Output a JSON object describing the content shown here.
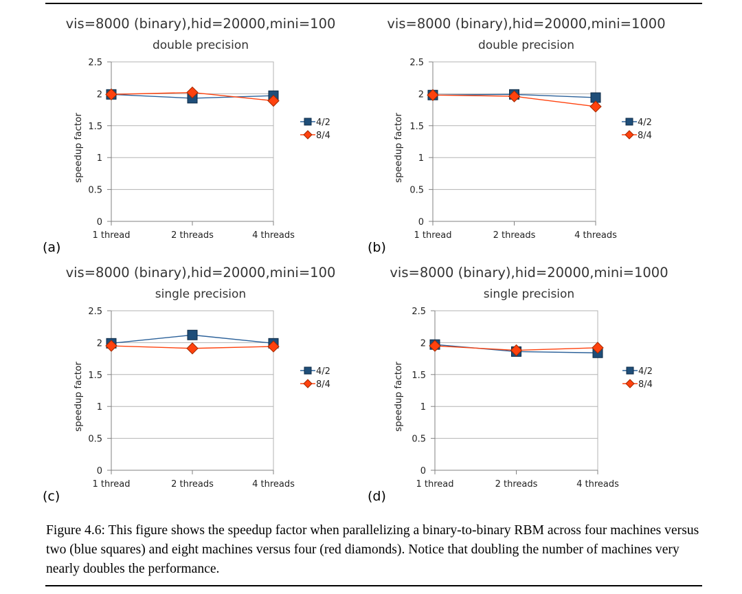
{
  "caption": "Figure 4.6: This figure shows the speedup factor when parallelizing a binary-to-binary RBM across four machines versus two (blue squares) and eight machines versus four (red diamonds). Notice that doubling the number of machines very nearly doubles the performance.",
  "colors": {
    "blue": "#1f4e79",
    "red": "#ff420e",
    "grid": "#b3b3b3",
    "axis": "#808080"
  },
  "chart_data": [
    {
      "panel": "(a)",
      "type": "line",
      "title": "vis=8000 (binary),hid=20000,mini=100",
      "subtitle": "double precision",
      "ylabel": "speedup factor",
      "categories": [
        "1 thread",
        "2 threads",
        "4 threads"
      ],
      "yticks": [
        "0",
        "0.5",
        "1",
        "1.5",
        "2",
        "2.5"
      ],
      "ylim": [
        0,
        2.5
      ],
      "legend_position": "right",
      "series": [
        {
          "name": "4/2",
          "marker": "square",
          "values": [
            1.99,
            1.93,
            1.97
          ]
        },
        {
          "name": "8/4",
          "marker": "diamond",
          "values": [
            1.99,
            2.02,
            1.89
          ]
        }
      ]
    },
    {
      "panel": "(b)",
      "type": "line",
      "title": "vis=8000 (binary),hid=20000,mini=1000",
      "subtitle": "double precision",
      "ylabel": "speedup factor",
      "categories": [
        "1 thread",
        "2 threads",
        "4 threads"
      ],
      "yticks": [
        "0",
        "0.5",
        "1",
        "1.5",
        "2",
        "2.5"
      ],
      "ylim": [
        0,
        2.5
      ],
      "legend_position": "right",
      "series": [
        {
          "name": "4/2",
          "marker": "square",
          "values": [
            1.98,
            1.99,
            1.94
          ]
        },
        {
          "name": "8/4",
          "marker": "diamond",
          "values": [
            1.98,
            1.96,
            1.8
          ]
        }
      ]
    },
    {
      "panel": "(c)",
      "type": "line",
      "title": "vis=8000 (binary),hid=20000,mini=100",
      "subtitle": "single precision",
      "ylabel": "speedup factor",
      "categories": [
        "1 thread",
        "2 threads",
        "4 threads"
      ],
      "yticks": [
        "0",
        "0.5",
        "1",
        "1.5",
        "2",
        "2.5"
      ],
      "ylim": [
        0,
        2.5
      ],
      "legend_position": "right",
      "series": [
        {
          "name": "4/2",
          "marker": "square",
          "values": [
            1.99,
            2.12,
            1.99
          ]
        },
        {
          "name": "8/4",
          "marker": "diamond",
          "values": [
            1.95,
            1.91,
            1.94
          ]
        }
      ]
    },
    {
      "panel": "(d)",
      "type": "line",
      "title": "vis=8000 (binary),hid=20000,mini=1000",
      "subtitle": "single precision",
      "ylabel": "speedup factor",
      "categories": [
        "1 thread",
        "2 threads",
        "4 threads"
      ],
      "yticks": [
        "0",
        "0.5",
        "1",
        "1.5",
        "2",
        "2.5"
      ],
      "ylim": [
        0,
        2.5
      ],
      "legend_position": "right",
      "series": [
        {
          "name": "4/2",
          "marker": "square",
          "values": [
            1.97,
            1.86,
            1.84
          ]
        },
        {
          "name": "8/4",
          "marker": "diamond",
          "values": [
            1.95,
            1.88,
            1.92
          ]
        }
      ]
    }
  ]
}
